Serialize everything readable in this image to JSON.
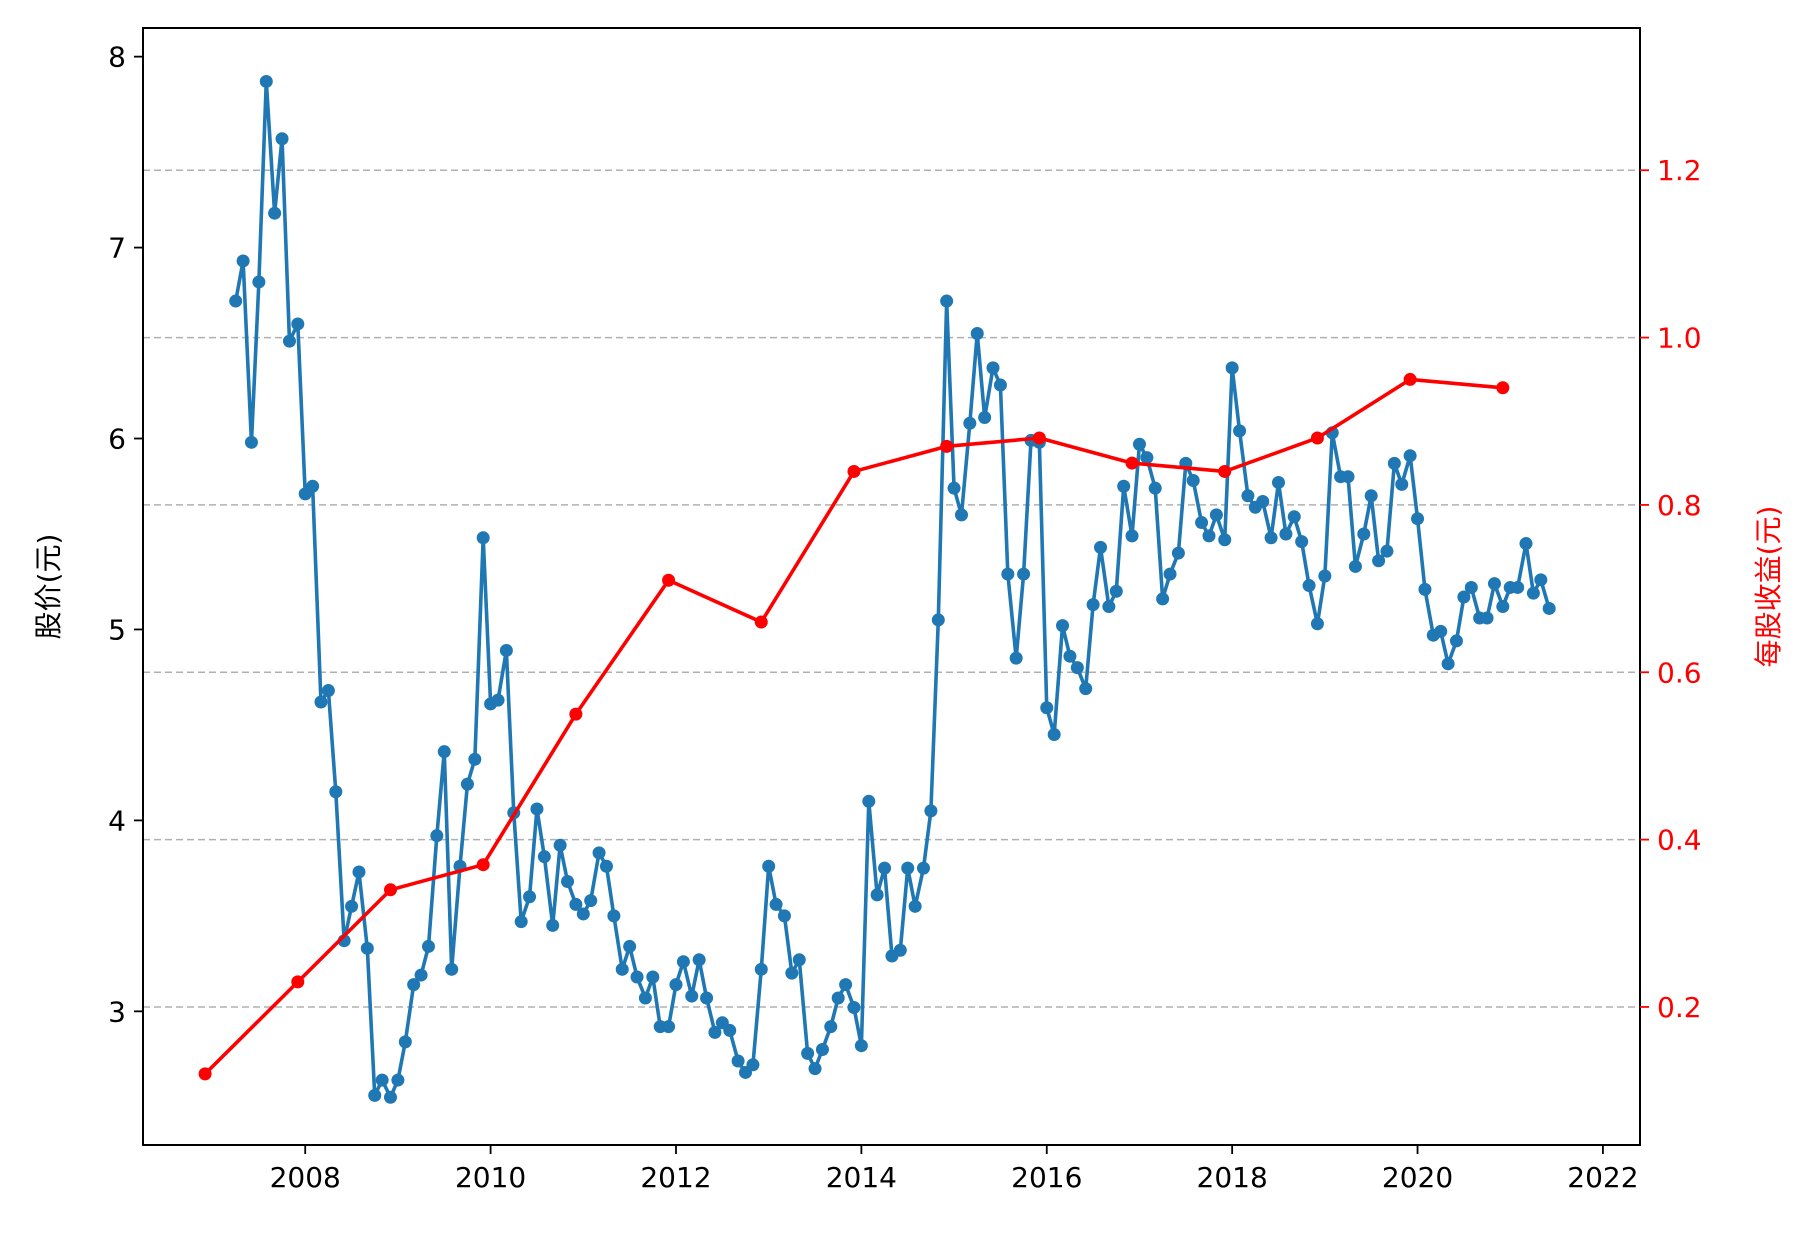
{
  "chart_data": {
    "type": "line",
    "title": "",
    "xlabel": "",
    "ylabel_left": "股价(元)",
    "ylabel_right": "每股收益(元)",
    "xlim": [
      2006.25,
      2022.4
    ],
    "ylim_left": [
      2.3,
      8.15
    ],
    "ylim_right": [
      0.035,
      1.37
    ],
    "x_ticks": [
      2008,
      2010,
      2012,
      2014,
      2016,
      2018,
      2020,
      2022
    ],
    "x_tick_labels": [
      "2008",
      "2010",
      "2012",
      "2014",
      "2016",
      "2018",
      "2020",
      "2022"
    ],
    "y_left_ticks": [
      3,
      4,
      5,
      6,
      7,
      8
    ],
    "y_left_tick_labels": [
      "3",
      "4",
      "5",
      "6",
      "7",
      "8"
    ],
    "y_right_ticks": [
      0.2,
      0.4,
      0.6,
      0.8,
      1.0,
      1.2
    ],
    "y_right_tick_labels": [
      "0.2",
      "0.4",
      "0.6",
      "0.8",
      "1.0",
      "1.2"
    ],
    "grid": "horizontal dashed at right-axis ticks",
    "colors": {
      "price": "#1f77b4",
      "eps": "#ff0000",
      "grid": "#b0b0b0",
      "axis": "#000000"
    },
    "series": [
      {
        "axis": "left",
        "color": "#1f77b4",
        "points": [
          [
            2007.25,
            6.72
          ],
          [
            2007.33,
            6.93
          ],
          [
            2007.42,
            5.98
          ],
          [
            2007.5,
            6.82
          ],
          [
            2007.58,
            7.87
          ],
          [
            2007.67,
            7.18
          ],
          [
            2007.75,
            7.57
          ],
          [
            2007.83,
            6.51
          ],
          [
            2007.92,
            6.6
          ],
          [
            2008.0,
            5.71
          ],
          [
            2008.08,
            5.75
          ],
          [
            2008.17,
            4.62
          ],
          [
            2008.25,
            4.68
          ],
          [
            2008.33,
            4.15
          ],
          [
            2008.42,
            3.37
          ],
          [
            2008.5,
            3.55
          ],
          [
            2008.58,
            3.73
          ],
          [
            2008.67,
            3.33
          ],
          [
            2008.75,
            2.56
          ],
          [
            2008.83,
            2.64
          ],
          [
            2008.92,
            2.55
          ],
          [
            2009.0,
            2.64
          ],
          [
            2009.08,
            2.84
          ],
          [
            2009.17,
            3.14
          ],
          [
            2009.25,
            3.19
          ],
          [
            2009.33,
            3.34
          ],
          [
            2009.42,
            3.92
          ],
          [
            2009.5,
            4.36
          ],
          [
            2009.58,
            3.22
          ],
          [
            2009.67,
            3.76
          ],
          [
            2009.75,
            4.19
          ],
          [
            2009.83,
            4.32
          ],
          [
            2009.92,
            5.48
          ],
          [
            2010.0,
            4.61
          ],
          [
            2010.08,
            4.63
          ],
          [
            2010.17,
            4.89
          ],
          [
            2010.25,
            4.04
          ],
          [
            2010.33,
            3.47
          ],
          [
            2010.42,
            3.6
          ],
          [
            2010.5,
            4.06
          ],
          [
            2010.58,
            3.81
          ],
          [
            2010.67,
            3.45
          ],
          [
            2010.75,
            3.87
          ],
          [
            2010.83,
            3.68
          ],
          [
            2010.92,
            3.56
          ],
          [
            2011.0,
            3.51
          ],
          [
            2011.08,
            3.58
          ],
          [
            2011.17,
            3.83
          ],
          [
            2011.25,
            3.76
          ],
          [
            2011.33,
            3.5
          ],
          [
            2011.42,
            3.22
          ],
          [
            2011.5,
            3.34
          ],
          [
            2011.58,
            3.18
          ],
          [
            2011.67,
            3.07
          ],
          [
            2011.75,
            3.18
          ],
          [
            2011.83,
            2.92
          ],
          [
            2011.92,
            2.92
          ],
          [
            2012.0,
            3.14
          ],
          [
            2012.08,
            3.26
          ],
          [
            2012.17,
            3.08
          ],
          [
            2012.25,
            3.27
          ],
          [
            2012.33,
            3.07
          ],
          [
            2012.42,
            2.89
          ],
          [
            2012.5,
            2.94
          ],
          [
            2012.58,
            2.9
          ],
          [
            2012.67,
            2.74
          ],
          [
            2012.75,
            2.68
          ],
          [
            2012.83,
            2.72
          ],
          [
            2012.92,
            3.22
          ],
          [
            2013.0,
            3.76
          ],
          [
            2013.08,
            3.56
          ],
          [
            2013.17,
            3.5
          ],
          [
            2013.25,
            3.2
          ],
          [
            2013.33,
            3.27
          ],
          [
            2013.42,
            2.78
          ],
          [
            2013.5,
            2.7
          ],
          [
            2013.58,
            2.8
          ],
          [
            2013.67,
            2.92
          ],
          [
            2013.75,
            3.07
          ],
          [
            2013.83,
            3.14
          ],
          [
            2013.92,
            3.02
          ],
          [
            2014.0,
            2.82
          ],
          [
            2014.08,
            4.1
          ],
          [
            2014.17,
            3.61
          ],
          [
            2014.25,
            3.75
          ],
          [
            2014.33,
            3.29
          ],
          [
            2014.42,
            3.32
          ],
          [
            2014.5,
            3.75
          ],
          [
            2014.58,
            3.55
          ],
          [
            2014.67,
            3.75
          ],
          [
            2014.75,
            4.05
          ],
          [
            2014.83,
            5.05
          ],
          [
            2014.92,
            6.72
          ],
          [
            2015.0,
            5.74
          ],
          [
            2015.08,
            5.6
          ],
          [
            2015.17,
            6.08
          ],
          [
            2015.25,
            6.55
          ],
          [
            2015.33,
            6.11
          ],
          [
            2015.42,
            6.37
          ],
          [
            2015.5,
            6.28
          ],
          [
            2015.58,
            5.29
          ],
          [
            2015.67,
            4.85
          ],
          [
            2015.75,
            5.29
          ],
          [
            2015.83,
            5.99
          ],
          [
            2015.92,
            5.98
          ],
          [
            2016.0,
            4.59
          ],
          [
            2016.08,
            4.45
          ],
          [
            2016.17,
            5.02
          ],
          [
            2016.25,
            4.86
          ],
          [
            2016.33,
            4.8
          ],
          [
            2016.42,
            4.69
          ],
          [
            2016.5,
            5.13
          ],
          [
            2016.58,
            5.43
          ],
          [
            2016.67,
            5.12
          ],
          [
            2016.75,
            5.2
          ],
          [
            2016.83,
            5.75
          ],
          [
            2016.92,
            5.49
          ],
          [
            2017.0,
            5.97
          ],
          [
            2017.08,
            5.9
          ],
          [
            2017.17,
            5.74
          ],
          [
            2017.25,
            5.16
          ],
          [
            2017.33,
            5.29
          ],
          [
            2017.42,
            5.4
          ],
          [
            2017.5,
            5.87
          ],
          [
            2017.58,
            5.78
          ],
          [
            2017.67,
            5.56
          ],
          [
            2017.75,
            5.49
          ],
          [
            2017.83,
            5.6
          ],
          [
            2017.92,
            5.47
          ],
          [
            2018.0,
            6.37
          ],
          [
            2018.08,
            6.04
          ],
          [
            2018.17,
            5.7
          ],
          [
            2018.25,
            5.64
          ],
          [
            2018.33,
            5.67
          ],
          [
            2018.42,
            5.48
          ],
          [
            2018.5,
            5.77
          ],
          [
            2018.58,
            5.5
          ],
          [
            2018.67,
            5.59
          ],
          [
            2018.75,
            5.46
          ],
          [
            2018.83,
            5.23
          ],
          [
            2018.92,
            5.03
          ],
          [
            2019.0,
            5.28
          ],
          [
            2019.08,
            6.03
          ],
          [
            2019.17,
            5.8
          ],
          [
            2019.25,
            5.8
          ],
          [
            2019.33,
            5.33
          ],
          [
            2019.42,
            5.5
          ],
          [
            2019.5,
            5.7
          ],
          [
            2019.58,
            5.36
          ],
          [
            2019.67,
            5.41
          ],
          [
            2019.75,
            5.87
          ],
          [
            2019.83,
            5.76
          ],
          [
            2019.92,
            5.91
          ],
          [
            2020.0,
            5.58
          ],
          [
            2020.08,
            5.21
          ],
          [
            2020.17,
            4.97
          ],
          [
            2020.25,
            4.99
          ],
          [
            2020.33,
            4.82
          ],
          [
            2020.42,
            4.94
          ],
          [
            2020.5,
            5.17
          ],
          [
            2020.58,
            5.22
          ],
          [
            2020.67,
            5.06
          ],
          [
            2020.75,
            5.06
          ],
          [
            2020.83,
            5.24
          ],
          [
            2020.92,
            5.12
          ],
          [
            2021.0,
            5.22
          ],
          [
            2021.08,
            5.22
          ],
          [
            2021.17,
            5.45
          ],
          [
            2021.25,
            5.19
          ],
          [
            2021.33,
            5.26
          ],
          [
            2021.42,
            5.11
          ]
        ]
      },
      {
        "axis": "right",
        "color": "#ff0000",
        "points": [
          [
            2006.92,
            0.12
          ],
          [
            2007.92,
            0.23
          ],
          [
            2008.92,
            0.34
          ],
          [
            2009.92,
            0.37
          ],
          [
            2010.92,
            0.55
          ],
          [
            2011.92,
            0.71
          ],
          [
            2012.92,
            0.66
          ],
          [
            2013.92,
            0.84
          ],
          [
            2014.92,
            0.87
          ],
          [
            2015.92,
            0.88
          ],
          [
            2016.92,
            0.85
          ],
          [
            2017.92,
            0.84
          ],
          [
            2018.92,
            0.88
          ],
          [
            2019.92,
            0.95
          ],
          [
            2020.92,
            0.94
          ]
        ]
      }
    ]
  }
}
